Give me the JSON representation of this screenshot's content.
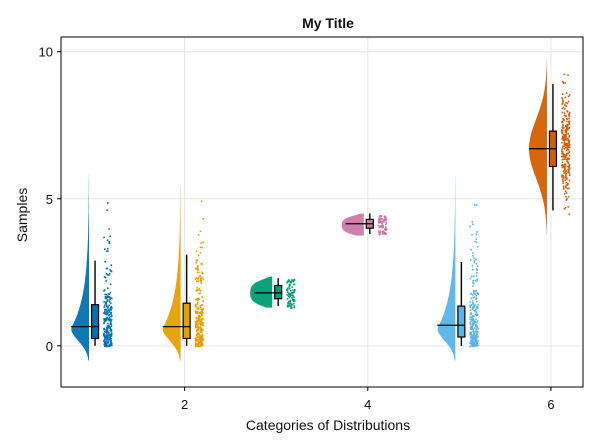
{
  "chart_data": {
    "type": "raincloud",
    "title": "My Title",
    "xlabel": "Categories of Distributions",
    "ylabel": "Samples",
    "xlim": [
      0.65,
      6.35
    ],
    "ylim": [
      -1.4,
      10.5
    ],
    "x_ticks": [
      2,
      4,
      6
    ],
    "y_ticks": [
      0,
      5,
      10
    ],
    "x_tick_labels": [
      "2",
      "4",
      "6"
    ],
    "y_tick_labels": [
      "0",
      "5",
      "10"
    ],
    "grid": true,
    "categories": [
      {
        "x": 1,
        "color": "#0072b2",
        "min": 0.0,
        "q1": 0.25,
        "median": 0.65,
        "q3": 1.4,
        "max": 2.9,
        "whisker_low": 0.0,
        "whisker_high": 2.9,
        "mode": 0.6,
        "dist_low": -0.5,
        "dist_high": 5.8,
        "shape": "skewed"
      },
      {
        "x": 2,
        "color": "#e69f00",
        "min": 0.0,
        "q1": 0.25,
        "median": 0.65,
        "q3": 1.45,
        "max": 3.1,
        "whisker_low": 0.0,
        "whisker_high": 3.1,
        "mode": 0.6,
        "dist_low": -0.5,
        "dist_high": 5.4,
        "shape": "skewed"
      },
      {
        "x": 3,
        "color": "#009e73",
        "min": 1.3,
        "q1": 1.6,
        "median": 1.8,
        "q3": 2.05,
        "max": 2.3,
        "whisker_low": 1.35,
        "whisker_high": 2.3,
        "mode": 1.8,
        "dist_low": 1.3,
        "dist_high": 2.4,
        "shape": "compact"
      },
      {
        "x": 4,
        "color": "#cc79a7",
        "min": 3.8,
        "q1": 4.0,
        "median": 4.15,
        "q3": 4.3,
        "max": 4.45,
        "whisker_low": 3.8,
        "whisker_high": 4.5,
        "mode": 4.1,
        "dist_low": 3.75,
        "dist_high": 4.55,
        "shape": "compact"
      },
      {
        "x": 5,
        "color": "#56b4e9",
        "min": 0.0,
        "q1": 0.3,
        "median": 0.7,
        "q3": 1.35,
        "max": 2.85,
        "whisker_low": 0.0,
        "whisker_high": 2.85,
        "mode": 0.6,
        "dist_low": -0.5,
        "dist_high": 5.8,
        "shape": "skewed"
      },
      {
        "x": 6,
        "color": "#d55e00",
        "min": 4.6,
        "q1": 6.1,
        "median": 6.7,
        "q3": 7.3,
        "max": 8.9,
        "whisker_low": 4.6,
        "whisker_high": 8.9,
        "mode": 6.7,
        "dist_low": 3.8,
        "dist_high": 9.7,
        "shape": "normal"
      }
    ]
  }
}
